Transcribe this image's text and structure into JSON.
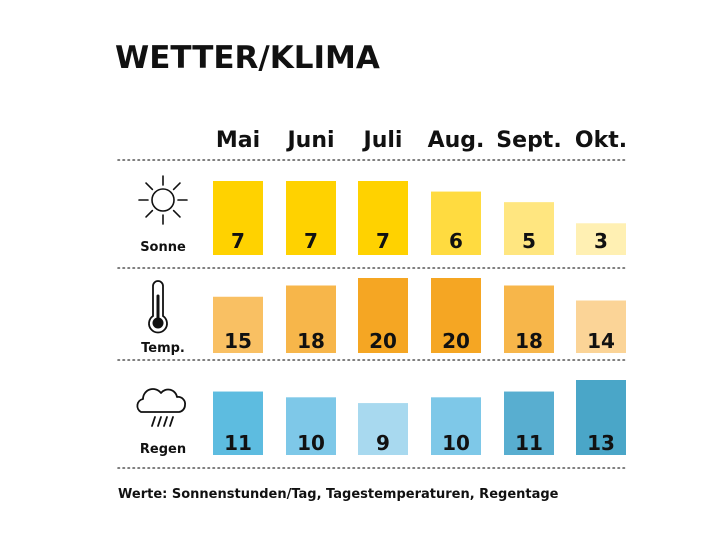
{
  "title": "WETTER/KLIMA",
  "footnote": "Werte: Sonnenstunden/Tag, Tagestemperaturen, Regentage",
  "chart_data": {
    "type": "bar",
    "categories": [
      "Mai",
      "Juni",
      "Juli",
      "Aug.",
      "Sept.",
      "Okt."
    ],
    "series": [
      {
        "name": "Sonne",
        "icon": "sun-icon",
        "values": [
          7,
          7,
          7,
          6,
          5,
          3
        ],
        "colors": [
          "#ffd200",
          "#ffd200",
          "#ffd200",
          "#ffdb40",
          "#ffe680",
          "#fff0b3"
        ]
      },
      {
        "name": "Temp.",
        "icon": "thermometer-icon",
        "values": [
          15,
          18,
          20,
          20,
          18,
          14
        ],
        "colors": [
          "#f9c063",
          "#f7b64a",
          "#f5a623",
          "#f5a623",
          "#f7b64a",
          "#fbd497"
        ]
      },
      {
        "name": "Regen",
        "icon": "rain-cloud-icon",
        "values": [
          11,
          10,
          9,
          10,
          11,
          13
        ],
        "colors": [
          "#5dbce0",
          "#7ec8e8",
          "#a8d9ef",
          "#7ec8e8",
          "#58aed0",
          "#4aa6c8"
        ]
      }
    ],
    "grid": false,
    "legend": "none"
  }
}
